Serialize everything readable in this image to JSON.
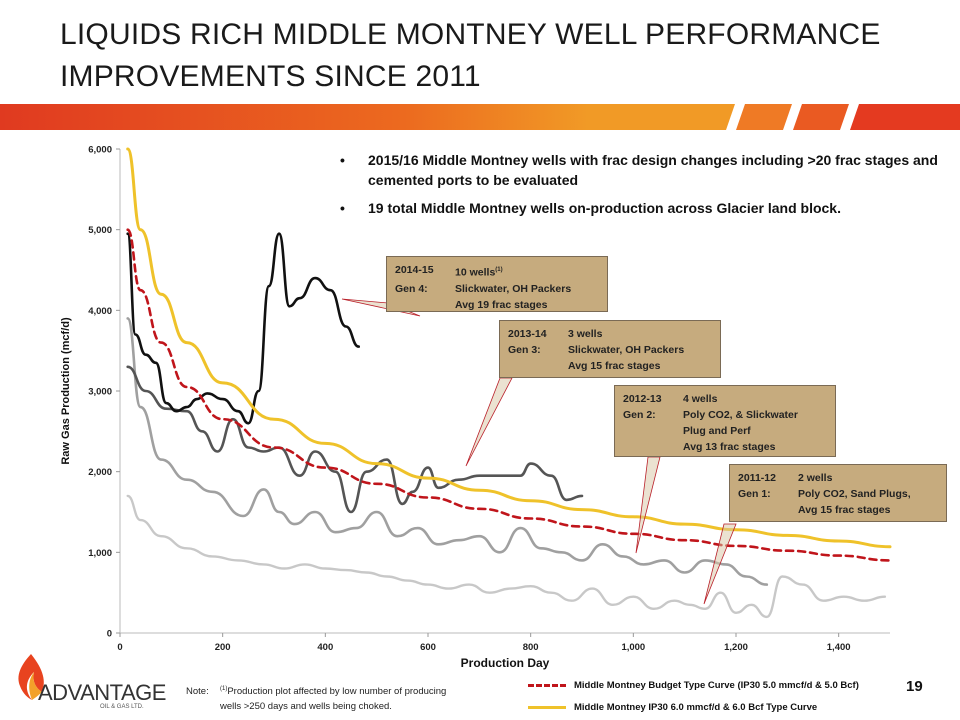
{
  "title": "LIQUIDS RICH MIDDLE MONTNEY WELL PERFORMANCE IMPROVEMENTS SINCE 2011",
  "bullets": [
    "2015/16 Middle Montney wells with frac design changes including >20 frac stages and cemented ports to be evaluated",
    "19 total Middle Montney wells on-production across Glacier land block."
  ],
  "callouts": [
    {
      "period": "2014-15",
      "count": "10 wells",
      "footnote": "(1)",
      "gen": "Gen 4:",
      "design": "Slickwater, OH Packers",
      "stages": "Avg 19 frac stages"
    },
    {
      "period": "2013-14",
      "count": "3 wells",
      "footnote": "",
      "gen": "Gen 3:",
      "design": "Slickwater, OH Packers",
      "stages": "Avg 15 frac stages"
    },
    {
      "period": "2012-13",
      "count": "4 wells",
      "footnote": "",
      "gen": "Gen 2:",
      "design": "Poly CO2,  & Slickwater",
      "design2": "Plug and Perf",
      "stages": "Avg 13 frac stages"
    },
    {
      "period": "2011-12",
      "count": "2 wells",
      "footnote": "",
      "gen": "Gen 1:",
      "design": "Poly CO2,  Sand Plugs,",
      "stages": "Avg 15 frac stages"
    }
  ],
  "note": {
    "label": "Note:",
    "marker": "(1)",
    "line1": "Production plot affected by low number of producing",
    "line2": "wells >250 days and wells being choked."
  },
  "page_number": "19",
  "logo": {
    "name": "ADVANTAGE",
    "sub": "OIL & GAS LTD."
  },
  "colors": {
    "brand_bar": "#e8431f",
    "budget_curve": "#c0151b",
    "ip30_curve": "#efc22a",
    "gen4": "#111111",
    "gen3": "#555555",
    "gen2": "#a0a0a0",
    "gen1": "#c8c8c8",
    "callout_fill": "#c6ab7e"
  },
  "chart_data": {
    "type": "line",
    "xlabel": "Production Day",
    "ylabel": "Raw Gas Production (mcf/d)",
    "xlim": [
      0,
      1500
    ],
    "ylim": [
      0,
      6000
    ],
    "xticks": [
      0,
      200,
      400,
      600,
      800,
      1000,
      1200,
      1400
    ],
    "xtick_labels": [
      "0",
      "200",
      "400",
      "600",
      "800",
      "1,000",
      "1,200",
      "1,400"
    ],
    "yticks": [
      0,
      1000,
      2000,
      3000,
      4000,
      5000,
      6000
    ],
    "ytick_labels": [
      "0",
      "1,000",
      "2,000",
      "3,000",
      "4,000",
      "5,000",
      "6,000"
    ],
    "grid": false,
    "legend_position": "bottom-right",
    "series": [
      {
        "name": "Middle Montney Budget Type Curve (IP30 5.0 mmcf/d & 5.0 Bcf)",
        "style": "dashed",
        "color": "#c0151b",
        "x": [
          15,
          40,
          80,
          130,
          200,
          300,
          400,
          500,
          600,
          700,
          800,
          900,
          1000,
          1100,
          1200,
          1300,
          1400,
          1500
        ],
        "y": [
          5000,
          4250,
          3600,
          3050,
          2650,
          2300,
          2050,
          1850,
          1680,
          1540,
          1420,
          1320,
          1230,
          1150,
          1080,
          1020,
          960,
          900
        ]
      },
      {
        "name": "Middle Montney IP30 6.0 mmcf/d & 6.0 Bcf Type Curve",
        "style": "solid",
        "color": "#efc22a",
        "x": [
          15,
          40,
          80,
          130,
          200,
          300,
          400,
          500,
          600,
          700,
          800,
          900,
          1000,
          1100,
          1200,
          1300,
          1400,
          1500
        ],
        "y": [
          6000,
          5000,
          4200,
          3600,
          3100,
          2650,
          2350,
          2100,
          1920,
          1770,
          1640,
          1530,
          1440,
          1350,
          1280,
          1210,
          1140,
          1070
        ]
      },
      {
        "name": "Gen 4",
        "style": "solid",
        "color": "#111111",
        "x": [
          15,
          30,
          50,
          70,
          90,
          110,
          130,
          150,
          170,
          200,
          230,
          250,
          270,
          290,
          310,
          330,
          350,
          380,
          410,
          440,
          465
        ],
        "y": [
          4950,
          3700,
          3450,
          3350,
          2850,
          2750,
          2800,
          2900,
          2970,
          2900,
          2750,
          2600,
          3000,
          4300,
          4950,
          4050,
          4150,
          4400,
          4250,
          3800,
          3550
        ]
      },
      {
        "name": "Gen 3",
        "style": "solid",
        "color": "#555555",
        "x": [
          15,
          50,
          90,
          130,
          160,
          190,
          220,
          250,
          280,
          310,
          350,
          380,
          420,
          450,
          480,
          520,
          550,
          570,
          600,
          620,
          660,
          700,
          740,
          780,
          800,
          840,
          870,
          900
        ],
        "y": [
          3300,
          3000,
          2780,
          2750,
          2500,
          2250,
          2650,
          2300,
          2250,
          2300,
          1950,
          2250,
          2000,
          1500,
          2000,
          2150,
          1600,
          1750,
          2050,
          1800,
          1900,
          1950,
          1950,
          1950,
          2100,
          1950,
          1650,
          1700
        ]
      },
      {
        "name": "Gen 2",
        "style": "solid",
        "color": "#a0a0a0",
        "x": [
          15,
          40,
          80,
          130,
          180,
          240,
          280,
          310,
          340,
          380,
          420,
          460,
          500,
          540,
          580,
          620,
          660,
          700,
          740,
          780,
          820,
          860,
          900,
          940,
          980,
          1020,
          1060,
          1100,
          1140,
          1180,
          1220,
          1260
        ],
        "y": [
          3900,
          2800,
          2150,
          1900,
          1750,
          1450,
          1780,
          1500,
          1350,
          1500,
          1250,
          1300,
          1500,
          1200,
          1300,
          1100,
          1150,
          1200,
          1000,
          1300,
          1050,
          1000,
          900,
          1100,
          950,
          850,
          900,
          750,
          900,
          850,
          700,
          600
        ]
      },
      {
        "name": "Gen 1",
        "style": "solid",
        "color": "#c8c8c8",
        "x": [
          15,
          40,
          80,
          130,
          180,
          230,
          280,
          320,
          360,
          400,
          440,
          480,
          520,
          560,
          600,
          640,
          680,
          720,
          760,
          800,
          840,
          880,
          920,
          960,
          1000,
          1040,
          1080,
          1110,
          1140,
          1170,
          1200,
          1230,
          1260,
          1290,
          1330,
          1370,
          1410,
          1450,
          1490
        ],
        "y": [
          1700,
          1400,
          1200,
          1050,
          950,
          900,
          850,
          800,
          850,
          800,
          780,
          750,
          700,
          650,
          600,
          550,
          600,
          500,
          550,
          580,
          500,
          400,
          550,
          350,
          450,
          300,
          400,
          350,
          300,
          500,
          250,
          350,
          200,
          700,
          600,
          400,
          450,
          400,
          450
        ]
      }
    ]
  }
}
